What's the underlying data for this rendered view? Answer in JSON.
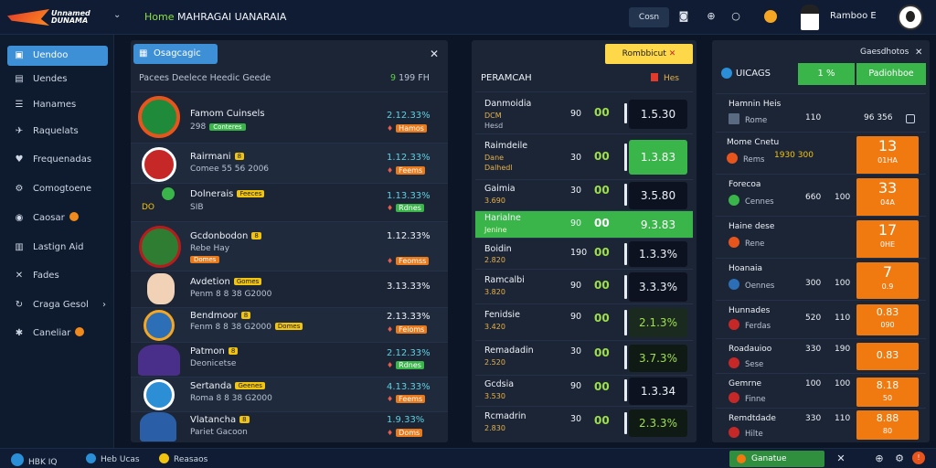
{
  "header": {
    "logo_text": "Unnamed DUNAMA",
    "title_a": "Home",
    "title_b": "MAHRAGAI UANARAIA",
    "button": "Cosn",
    "username": "Ramboo E"
  },
  "sidebar": {
    "items": [
      {
        "label": "Uendoo",
        "icon": "home-icon",
        "active": true
      },
      {
        "label": "Uendes",
        "icon": "menu-icon"
      },
      {
        "label": "Hanames",
        "icon": "list-icon"
      },
      {
        "label": "Raquelats",
        "icon": "bird-icon"
      },
      {
        "label": "Frequenadas",
        "icon": "heart-icon"
      },
      {
        "label": "Comogtoene",
        "icon": "settings-icon"
      },
      {
        "label": "Caosar",
        "icon": "globe-icon",
        "dot": true
      },
      {
        "label": "Lastign Aid",
        "icon": "chart-icon"
      },
      {
        "label": "Fades",
        "icon": "cross-icon"
      },
      {
        "label": "Craga Gesol",
        "icon": "refresh-icon",
        "chevron": true
      },
      {
        "label": "Caneliar",
        "icon": "gear-icon",
        "dot": true
      }
    ]
  },
  "matches": {
    "header": "Osagcagic",
    "subtitle": "Pacees Deelece Heedic Geede",
    "count_a": "9",
    "count_b": "199 FH",
    "rows": [
      {
        "name": "Famom Cuinsels",
        "meta": "298",
        "tag": "Conteres",
        "odds": "2.12.33%",
        "odds2": "Hamos"
      },
      {
        "name": "Rairmani",
        "meta": "Comee 55 56 2006",
        "tag": "8",
        "odds": "1.12.33%",
        "odds2": "Feems"
      },
      {
        "name": "Dolnerais",
        "meta": "SIB",
        "tag": "Feeces",
        "odds": "1.13.33%",
        "odds2": "Rdnes"
      },
      {
        "name": "Gcdonbodon",
        "meta": "Rebe Hay",
        "tag": "Domes",
        "odds": "1.12.33%",
        "odds2": "Feomss"
      },
      {
        "name": "Avdetion",
        "meta": "Penm 8 8 38 G2000",
        "tag": "Gomes",
        "odds": "3.13.33%",
        "odds2": ""
      },
      {
        "name": "Bendmoor",
        "meta": "Fenm 8 8 38 G2000",
        "tag": "Domes",
        "odds": "2.13.33%",
        "odds2": "Feioms"
      },
      {
        "name": "Patmon",
        "meta": "Deonicetse",
        "tag": "8",
        "odds": "2.12.33%",
        "odds2": "Rdnes"
      },
      {
        "name": "Sertanda",
        "meta": "Roma 8 8 38 G2000",
        "tag": "Geenes",
        "odds": "4.13.33%",
        "odds2": "Feems"
      },
      {
        "name": "Vlatancha",
        "meta": "Pariet Gacoon",
        "tag": "8",
        "odds": "1.9.33%",
        "odds2": "Doms"
      }
    ]
  },
  "board": {
    "top_button": "Rombbicut",
    "title": "PERAMCAH",
    "flag_label": "Hes",
    "rows": [
      {
        "name": "Danmoidia",
        "sub": "DCM",
        "sub2": "Hesd",
        "mid": "90",
        "oo": "00",
        "box": "1.5.30",
        "style": "dark"
      },
      {
        "name": "Raimdeile",
        "sub": "Dane",
        "sub2": "Dalhedl",
        "mid": "30",
        "oo": "00",
        "box": "1.3.83",
        "style": "green"
      },
      {
        "name": "Gaimia",
        "sub": "3.690",
        "sub2": "",
        "mid": "30",
        "oo": "00",
        "box": "3.5.80",
        "style": "dark"
      },
      {
        "name": "Harialne",
        "sub": "Jenine",
        "sub2": "",
        "mid": "90",
        "oo": "00",
        "box": "9.3.83",
        "style": "hl"
      },
      {
        "name": "Boidin",
        "sub": "2.820",
        "sub2": "",
        "mid": "190",
        "oo": "00",
        "box": "1.3.3%",
        "style": "dark"
      },
      {
        "name": "Ramcalbi",
        "sub": "3.820",
        "sub2": "",
        "mid": "90",
        "oo": "00",
        "box": "3.3.3%",
        "style": "dark"
      },
      {
        "name": "Fenidsie",
        "sub": "3.420",
        "sub2": "",
        "mid": "90",
        "oo": "00",
        "box": "2.1.3%",
        "style": "lime"
      },
      {
        "name": "Remadadin",
        "sub": "2.520",
        "sub2": "",
        "mid": "30",
        "oo": "00",
        "box": "3.7.3%",
        "style": "dark"
      },
      {
        "name": "Gcdsia",
        "sub": "3.530",
        "sub2": "",
        "mid": "90",
        "oo": "00",
        "box": "1.3.34",
        "style": "dark"
      },
      {
        "name": "Rcmadrin",
        "sub": "2.830",
        "sub2": "",
        "mid": "30",
        "oo": "00",
        "box": "2.3.3%",
        "style": "dark"
      }
    ]
  },
  "odds_panel": {
    "label": "Gaesdhotos",
    "title": "UICAGS",
    "green1": "1 %",
    "green2": "Padiohboe",
    "rows": [
      {
        "name": "Hamnin Heis",
        "sub": "Rome",
        "a": "110",
        "b": "96 356",
        "orange": "",
        "orange_sm": ""
      },
      {
        "name": "Mome Cnetu",
        "sub": "Rems",
        "a": "1930 300",
        "b": "",
        "orange": "13",
        "orange_sm": "01HA"
      },
      {
        "name": "Forecoa",
        "sub": "Cennes",
        "a": "660",
        "b": "100",
        "orange": "33",
        "orange_sm": "04A"
      },
      {
        "name": "Haine dese",
        "sub": "Rene",
        "a": "",
        "b": "",
        "orange": "17",
        "orange_sm": "0HE"
      },
      {
        "name": "Hoanaia",
        "sub": "Oennes",
        "a": "300",
        "b": "100",
        "orange": "7",
        "orange_sm": "0.9"
      },
      {
        "name": "Hunnades",
        "sub": "Ferdas",
        "a": "520",
        "b": "110",
        "orange": "0.83",
        "orange_sm": "090"
      },
      {
        "name": "Roadauioo",
        "sub": "Sese",
        "a": "330",
        "b": "190",
        "orange": "0.83",
        "orange_sm": ""
      },
      {
        "name": "Gemrne",
        "sub": "Finne",
        "a": "100",
        "b": "100",
        "orange": "8.18",
        "orange_sm": "50"
      },
      {
        "name": "Remdtdade",
        "sub": "Hilte",
        "a": "330",
        "b": "110",
        "orange": "8.88",
        "orange_sm": "80"
      }
    ]
  },
  "footer": {
    "item1": "HBK IQ",
    "item2": "Heb Ucas",
    "item3": "Reasaos",
    "green": "Ganatue"
  }
}
